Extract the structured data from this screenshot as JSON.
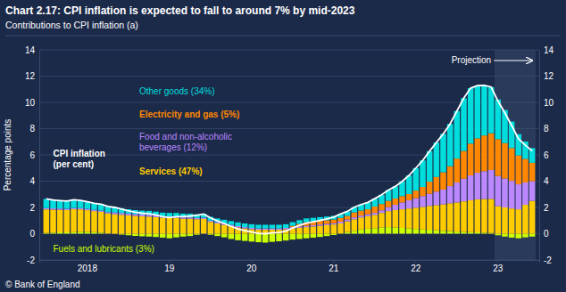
{
  "chart_data": {
    "type": "bar",
    "title": "Chart 2.17: CPI inflation is expected to fall to around 7% by mid-2023",
    "subtitle": "Contributions to CPI inflation (a)",
    "y_label": "Percentage points",
    "stacked": true,
    "grid": true,
    "categories": [
      null,
      null,
      null,
      null,
      null,
      null,
      "2018",
      null,
      null,
      null,
      null,
      null,
      null,
      null,
      null,
      null,
      null,
      null,
      "19",
      null,
      null,
      null,
      null,
      null,
      null,
      null,
      null,
      null,
      null,
      null,
      "20",
      null,
      null,
      null,
      null,
      null,
      null,
      null,
      null,
      null,
      null,
      null,
      "21",
      null,
      null,
      null,
      null,
      null,
      null,
      null,
      null,
      null,
      null,
      null,
      "22",
      null,
      null,
      null,
      null,
      null,
      null,
      null,
      null,
      null,
      null,
      null,
      "23",
      null,
      null,
      null,
      null,
      null
    ],
    "ylim": [
      -2,
      14
    ],
    "yticks": [
      -2,
      0,
      2,
      4,
      6,
      8,
      10,
      12,
      14
    ],
    "y2lim": [
      -2,
      14
    ],
    "y2ticks": [
      -2,
      0,
      2,
      4,
      6,
      8,
      10,
      12,
      14
    ],
    "series": [
      {
        "name": "Fuels and lubricants (3%)",
        "type": "bar",
        "color": "#ccff00",
        "values": [
          0.05,
          0.08,
          0.1,
          0.1,
          0.12,
          0.15,
          0.14,
          0.12,
          0.08,
          0.02,
          -0.02,
          -0.07,
          -0.12,
          -0.17,
          -0.2,
          -0.22,
          -0.25,
          -0.3,
          -0.35,
          -0.28,
          -0.22,
          -0.18,
          -0.08,
          0.02,
          -0.08,
          -0.18,
          -0.28,
          -0.4,
          -0.5,
          -0.55,
          -0.6,
          -0.65,
          -0.68,
          -0.62,
          -0.58,
          -0.52,
          -0.45,
          -0.4,
          -0.35,
          -0.3,
          -0.25,
          -0.18,
          -0.1,
          0.02,
          0.12,
          0.22,
          0.32,
          0.38,
          0.42,
          0.46,
          0.5,
          0.48,
          0.44,
          0.4,
          0.36,
          0.32,
          0.3,
          0.26,
          0.22,
          0.2,
          0.16,
          0.14,
          0.12,
          0.1,
          0.08,
          0.05,
          -0.12,
          -0.22,
          -0.3,
          -0.35,
          -0.28,
          -0.22
        ]
      },
      {
        "name": "Services (47%)",
        "type": "bar",
        "color": "#ffcc00",
        "values": [
          1.8,
          1.75,
          1.72,
          1.7,
          1.74,
          1.7,
          1.65,
          1.6,
          1.58,
          1.52,
          1.48,
          1.44,
          1.4,
          1.36,
          1.32,
          1.3,
          1.26,
          1.22,
          1.2,
          1.2,
          1.15,
          1.14,
          1.1,
          1.1,
          0.9,
          0.78,
          0.68,
          0.58,
          0.48,
          0.4,
          0.34,
          0.3,
          0.3,
          0.3,
          0.3,
          0.34,
          0.4,
          0.45,
          0.5,
          0.55,
          0.6,
          0.65,
          0.7,
          0.76,
          0.82,
          0.88,
          0.92,
          0.96,
          1.02,
          1.12,
          1.22,
          1.32,
          1.42,
          1.52,
          1.62,
          1.72,
          1.82,
          1.92,
          2.02,
          2.12,
          2.22,
          2.32,
          2.42,
          2.52,
          2.56,
          2.6,
          2.1,
          2.0,
          1.92,
          1.86,
          2.2,
          2.5
        ]
      },
      {
        "name": "Food and non-alcoholic\nbeverages (12%)",
        "type": "bar",
        "color": "#bb88ff",
        "values": [
          0.1,
          0.1,
          0.1,
          0.1,
          0.1,
          0.1,
          0.1,
          0.1,
          0.1,
          0.1,
          0.14,
          0.14,
          0.14,
          0.14,
          0.14,
          0.14,
          0.14,
          0.1,
          0.1,
          0.1,
          0.1,
          0.1,
          0.1,
          0.1,
          0.1,
          0.1,
          0.1,
          0.1,
          0.1,
          0.1,
          0.1,
          0.1,
          0.1,
          0.1,
          0.1,
          0.1,
          0.1,
          0.1,
          0.1,
          0.1,
          0.1,
          0.1,
          0.1,
          0.14,
          0.14,
          0.14,
          0.14,
          0.14,
          0.15,
          0.2,
          0.3,
          0.4,
          0.52,
          0.62,
          0.72,
          0.82,
          0.92,
          1.02,
          1.12,
          1.3,
          1.52,
          1.72,
          1.9,
          2.02,
          2.12,
          2.2,
          2.3,
          2.2,
          2.1,
          1.9,
          1.7,
          1.5
        ]
      },
      {
        "name": "Electricity and gas (5%)",
        "type": "bar",
        "color": "#ff8800",
        "values": [
          0.0,
          0.0,
          0.0,
          0.0,
          0.0,
          0.0,
          0.0,
          0.0,
          0.0,
          0.0,
          0.0,
          0.0,
          0.0,
          0.0,
          0.0,
          0.0,
          0.0,
          0.0,
          0.0,
          0.0,
          0.0,
          0.0,
          0.0,
          0.0,
          0.0,
          0.0,
          0.0,
          0.0,
          0.0,
          0.0,
          0.0,
          0.0,
          0.0,
          0.0,
          0.0,
          0.0,
          0.1,
          0.2,
          0.28,
          0.28,
          0.28,
          0.28,
          0.28,
          0.28,
          0.28,
          0.38,
          0.38,
          0.38,
          0.48,
          0.48,
          0.48,
          0.48,
          0.48,
          0.48,
          0.58,
          0.7,
          0.92,
          1.12,
          1.32,
          1.52,
          1.82,
          2.12,
          2.42,
          2.62,
          2.72,
          2.8,
          2.8,
          2.7,
          2.5,
          2.2,
          1.8,
          1.4
        ]
      },
      {
        "name": "Other goods (34%)",
        "type": "bar",
        "color": "#00dddd",
        "values": [
          0.7,
          0.64,
          0.6,
          0.58,
          0.62,
          0.58,
          0.54,
          0.5,
          0.48,
          0.44,
          0.4,
          0.36,
          0.32,
          0.3,
          0.3,
          0.3,
          0.28,
          0.28,
          0.28,
          0.28,
          0.28,
          0.28,
          0.28,
          0.28,
          0.28,
          0.28,
          0.28,
          0.28,
          0.28,
          0.28,
          0.28,
          0.28,
          0.28,
          0.28,
          0.28,
          0.28,
          0.28,
          0.28,
          0.28,
          0.28,
          0.28,
          0.28,
          0.28,
          0.3,
          0.34,
          0.4,
          0.46,
          0.52,
          0.6,
          0.7,
          0.82,
          0.92,
          1.12,
          1.42,
          1.72,
          2.02,
          2.32,
          2.62,
          2.92,
          3.22,
          3.62,
          4.02,
          4.22,
          4.02,
          3.82,
          3.52,
          3.02,
          2.52,
          2.02,
          1.62,
          1.32,
          1.12
        ]
      },
      {
        "name": "CPI inflation\n(per cent)",
        "type": "line",
        "color": "#ffffff",
        "values": [
          2.65,
          2.57,
          2.52,
          2.48,
          2.58,
          2.53,
          2.43,
          2.32,
          2.24,
          2.08,
          2.0,
          1.87,
          1.74,
          1.63,
          1.56,
          1.52,
          1.43,
          1.3,
          1.23,
          1.3,
          1.31,
          1.34,
          1.4,
          1.5,
          1.2,
          0.98,
          0.78,
          0.56,
          0.36,
          0.23,
          0.12,
          0.03,
          0.0,
          0.06,
          0.1,
          0.2,
          0.43,
          0.63,
          0.81,
          0.91,
          1.01,
          1.13,
          1.26,
          1.5,
          1.7,
          2.02,
          2.22,
          2.38,
          2.67,
          2.96,
          3.32,
          3.6,
          3.98,
          4.44,
          5.0,
          5.58,
          6.28,
          6.94,
          7.6,
          8.36,
          9.34,
          10.32,
          11.08,
          11.28,
          11.3,
          11.17,
          10.1,
          9.2,
          8.24,
          7.23,
          6.74,
          6.3
        ]
      }
    ],
    "annotations": [
      {
        "text": "Projection",
        "x": 66
      },
      {
        "text": "© Bank of England"
      }
    ]
  }
}
